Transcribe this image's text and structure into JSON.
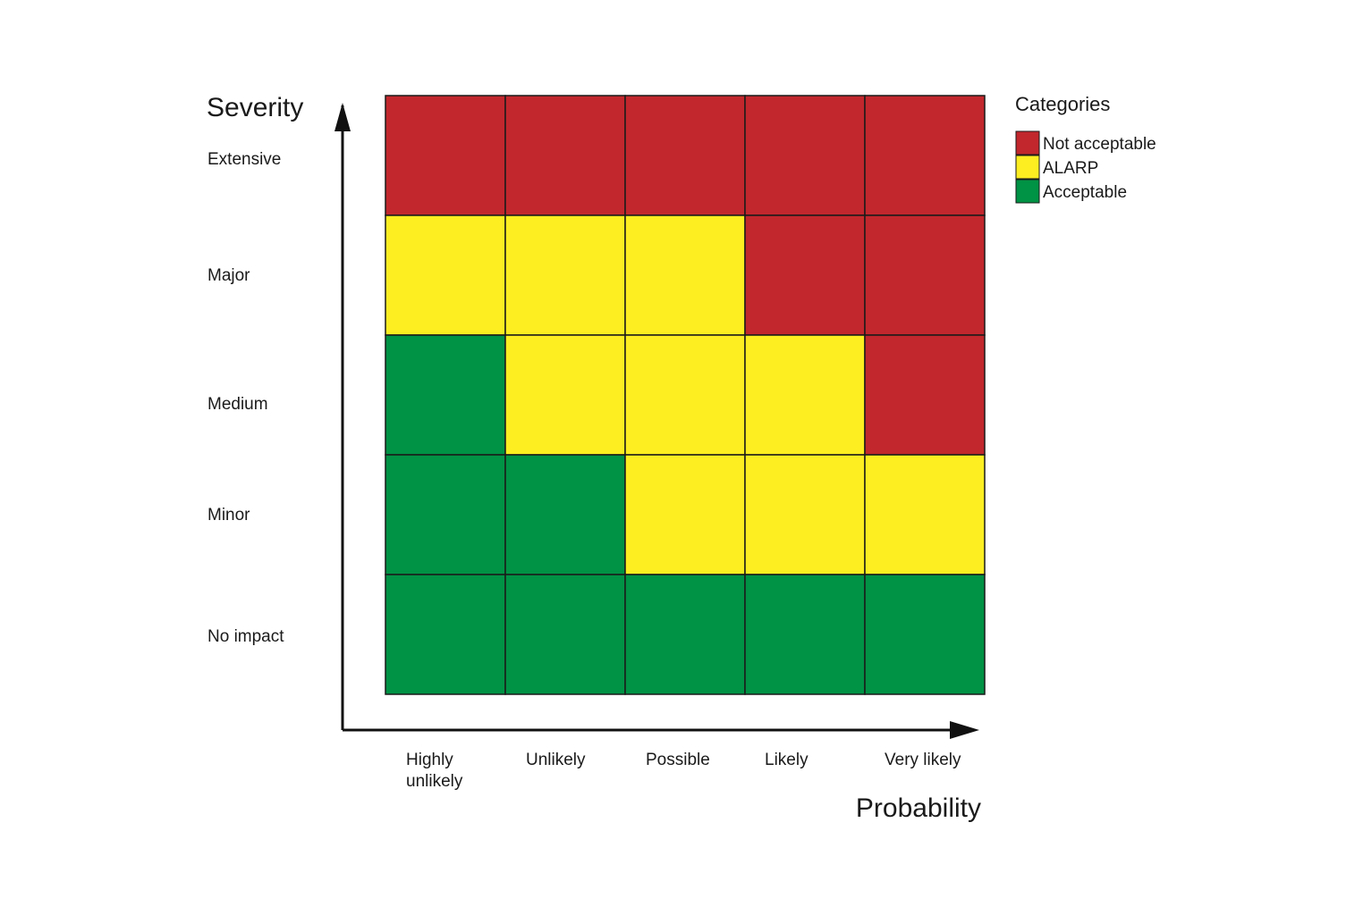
{
  "chart_data": {
    "type": "heatmap",
    "ylabel": "Severity",
    "xlabel": "Probability",
    "x_categories": [
      [
        "Highly",
        "unlikely"
      ],
      [
        "Unlikely"
      ],
      [
        "Possible"
      ],
      [
        "Likely"
      ],
      [
        "Very likely"
      ]
    ],
    "y_categories": [
      "Extensive",
      "Major",
      "Medium",
      "Minor",
      "No impact"
    ],
    "matrix": [
      [
        "Not acceptable",
        "Not acceptable",
        "Not acceptable",
        "Not acceptable",
        "Not acceptable"
      ],
      [
        "ALARP",
        "ALARP",
        "ALARP",
        "Not acceptable",
        "Not acceptable"
      ],
      [
        "Acceptable",
        "ALARP",
        "ALARP",
        "ALARP",
        "Not acceptable"
      ],
      [
        "Acceptable",
        "Acceptable",
        "ALARP",
        "ALARP",
        "ALARP"
      ],
      [
        "Acceptable",
        "Acceptable",
        "Acceptable",
        "Acceptable",
        "Acceptable"
      ]
    ],
    "legend": {
      "title": "Categories",
      "placement": "top-right",
      "items": [
        {
          "label": "Not acceptable",
          "color": "#c1272d"
        },
        {
          "label": "ALARP",
          "color": "#fcee21"
        },
        {
          "label": "Acceptable",
          "color": "#009245"
        }
      ]
    }
  }
}
